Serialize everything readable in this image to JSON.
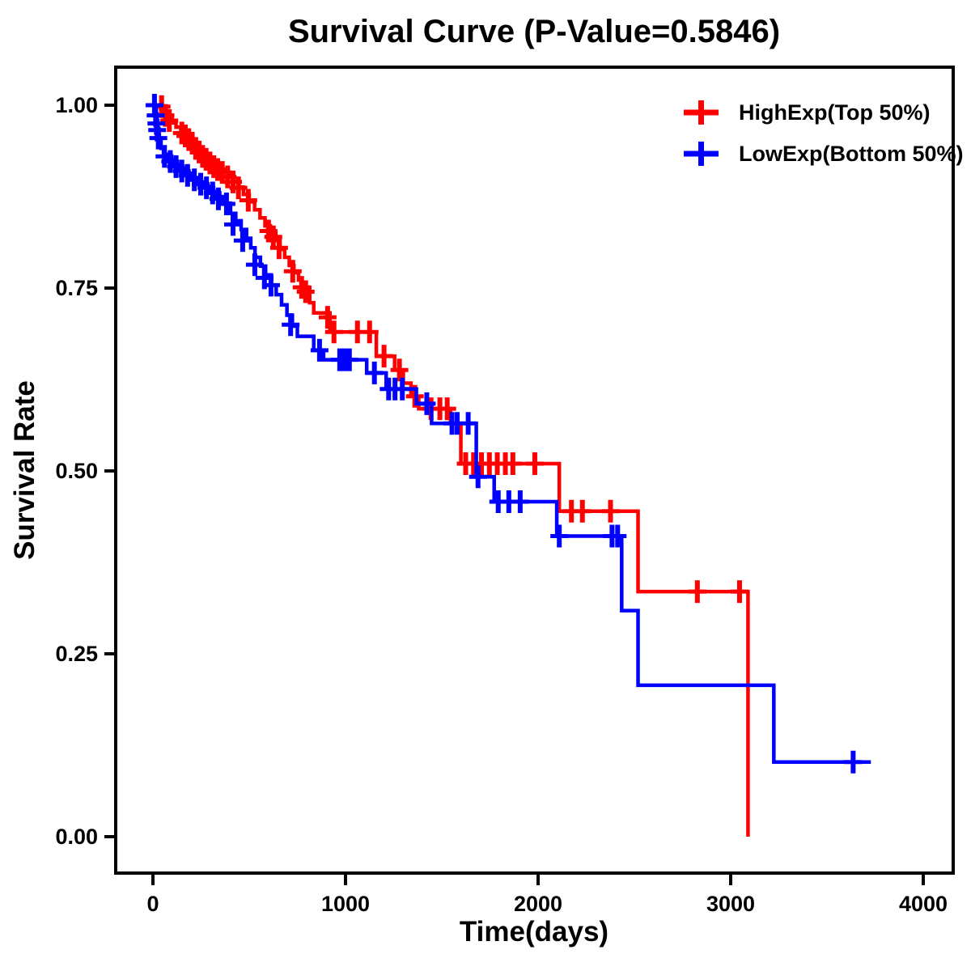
{
  "title": "Survival Curve (P-Value=0.5846)",
  "chart_data": {
    "type": "line",
    "subtype": "kaplan-meier-step",
    "title": "Survival Curve (P-Value=0.5846)",
    "p_value": "0.5846",
    "xlabel": "Time(days)",
    "ylabel": "Survival Rate",
    "xlim": [
      0,
      4000
    ],
    "ylim": [
      0.0,
      1.0
    ],
    "xticks": [
      0,
      1000,
      2000,
      3000,
      4000
    ],
    "xtick_labels": [
      "0",
      "1000",
      "2000",
      "3000",
      "4000"
    ],
    "yticks": [
      0.0,
      0.25,
      0.5,
      0.75,
      1.0
    ],
    "ytick_labels": [
      "0.00",
      "0.25",
      "0.50",
      "0.75",
      "1.00"
    ],
    "grid": false,
    "legend_position": "top-right-inside",
    "frame_color": "#000000",
    "background": "#ffffff",
    "series": [
      {
        "name": "HighExp(Top 50%)",
        "color": "#FF0000",
        "end_time": 3090,
        "steps": [
          [
            0,
            1.0
          ],
          [
            40,
            0.995
          ],
          [
            60,
            0.989
          ],
          [
            80,
            0.982
          ],
          [
            100,
            0.976
          ],
          [
            120,
            0.97
          ],
          [
            145,
            0.964
          ],
          [
            170,
            0.958
          ],
          [
            190,
            0.952
          ],
          [
            208,
            0.946
          ],
          [
            226,
            0.94
          ],
          [
            244,
            0.934
          ],
          [
            262,
            0.929
          ],
          [
            282,
            0.924
          ],
          [
            305,
            0.919
          ],
          [
            330,
            0.914
          ],
          [
            358,
            0.909
          ],
          [
            386,
            0.903
          ],
          [
            414,
            0.896
          ],
          [
            442,
            0.888
          ],
          [
            470,
            0.878
          ],
          [
            500,
            0.868
          ],
          [
            528,
            0.857
          ],
          [
            556,
            0.846
          ],
          [
            582,
            0.835
          ],
          [
            610,
            0.826
          ],
          [
            638,
            0.815
          ],
          [
            660,
            0.803
          ],
          [
            684,
            0.792
          ],
          [
            708,
            0.781
          ],
          [
            732,
            0.771
          ],
          [
            756,
            0.761
          ],
          [
            772,
            0.751
          ],
          [
            814,
            0.73
          ],
          [
            835,
            0.716
          ],
          [
            919,
            0.69
          ],
          [
            1160,
            0.657
          ],
          [
            1255,
            0.638
          ],
          [
            1300,
            0.62
          ],
          [
            1340,
            0.602
          ],
          [
            1380,
            0.585
          ],
          [
            1545,
            0.565
          ],
          [
            1599,
            0.51
          ],
          [
            2110,
            0.445
          ],
          [
            2519,
            0.335
          ],
          [
            3090,
            0.0
          ]
        ],
        "censors": [
          [
            45,
            0.998
          ],
          [
            65,
            0.986
          ],
          [
            85,
            0.979
          ],
          [
            150,
            0.962
          ],
          [
            168,
            0.958
          ],
          [
            186,
            0.953
          ],
          [
            204,
            0.948
          ],
          [
            222,
            0.941
          ],
          [
            240,
            0.936
          ],
          [
            258,
            0.93
          ],
          [
            276,
            0.926
          ],
          [
            296,
            0.921
          ],
          [
            316,
            0.916
          ],
          [
            336,
            0.912
          ],
          [
            360,
            0.908
          ],
          [
            388,
            0.902
          ],
          [
            416,
            0.895
          ],
          [
            444,
            0.887
          ],
          [
            495,
            0.87
          ],
          [
            600,
            0.828
          ],
          [
            625,
            0.82
          ],
          [
            655,
            0.805
          ],
          [
            726,
            0.773
          ],
          [
            772,
            0.751
          ],
          [
            793,
            0.745
          ],
          [
            907,
            0.71
          ],
          [
            940,
            0.69
          ],
          [
            1062,
            0.69
          ],
          [
            1125,
            0.69
          ],
          [
            1200,
            0.657
          ],
          [
            1280,
            0.638
          ],
          [
            1360,
            0.602
          ],
          [
            1444,
            0.585
          ],
          [
            1490,
            0.585
          ],
          [
            1528,
            0.585
          ],
          [
            1624,
            0.51
          ],
          [
            1665,
            0.51
          ],
          [
            1706,
            0.51
          ],
          [
            1747,
            0.51
          ],
          [
            1788,
            0.51
          ],
          [
            1830,
            0.51
          ],
          [
            1869,
            0.51
          ],
          [
            1983,
            0.51
          ],
          [
            2173,
            0.445
          ],
          [
            2230,
            0.445
          ],
          [
            2376,
            0.445
          ],
          [
            2827,
            0.335
          ],
          [
            3046,
            0.335
          ]
        ]
      },
      {
        "name": "LowExp(Bottom 50%)",
        "color": "#0000FF",
        "end_time": 3728,
        "steps": [
          [
            0,
            1.0
          ],
          [
            10,
            0.992
          ],
          [
            15,
            0.982
          ],
          [
            20,
            0.971
          ],
          [
            26,
            0.96
          ],
          [
            33,
            0.95
          ],
          [
            42,
            0.941
          ],
          [
            55,
            0.933
          ],
          [
            75,
            0.926
          ],
          [
            105,
            0.919
          ],
          [
            135,
            0.913
          ],
          [
            165,
            0.907
          ],
          [
            200,
            0.901
          ],
          [
            235,
            0.895
          ],
          [
            270,
            0.889
          ],
          [
            300,
            0.882
          ],
          [
            330,
            0.875
          ],
          [
            361,
            0.866
          ],
          [
            403,
            0.852
          ],
          [
            430,
            0.842
          ],
          [
            458,
            0.83
          ],
          [
            486,
            0.818
          ],
          [
            508,
            0.805
          ],
          [
            530,
            0.792
          ],
          [
            558,
            0.78
          ],
          [
            585,
            0.768
          ],
          [
            613,
            0.754
          ],
          [
            640,
            0.741
          ],
          [
            668,
            0.727
          ],
          [
            696,
            0.713
          ],
          [
            724,
            0.698
          ],
          [
            750,
            0.684
          ],
          [
            835,
            0.665
          ],
          [
            886,
            0.652
          ],
          [
            1110,
            0.634
          ],
          [
            1211,
            0.612
          ],
          [
            1368,
            0.592
          ],
          [
            1447,
            0.565
          ],
          [
            1679,
            0.492
          ],
          [
            1772,
            0.458
          ],
          [
            2097,
            0.411
          ],
          [
            2434,
            0.309
          ],
          [
            2519,
            0.207
          ],
          [
            3224,
            0.102
          ]
        ],
        "censors": [
          [
            8,
            1.0
          ],
          [
            14,
            0.986
          ],
          [
            18,
            0.975
          ],
          [
            22,
            0.966
          ],
          [
            28,
            0.955
          ],
          [
            60,
            0.93
          ],
          [
            90,
            0.923
          ],
          [
            120,
            0.916
          ],
          [
            150,
            0.91
          ],
          [
            180,
            0.904
          ],
          [
            215,
            0.898
          ],
          [
            248,
            0.892
          ],
          [
            278,
            0.887
          ],
          [
            310,
            0.88
          ],
          [
            340,
            0.872
          ],
          [
            382,
            0.865
          ],
          [
            416,
            0.837
          ],
          [
            466,
            0.815
          ],
          [
            529,
            0.782
          ],
          [
            579,
            0.764
          ],
          [
            613,
            0.754
          ],
          [
            715,
            0.7
          ],
          [
            865,
            0.665
          ],
          [
            970,
            0.652
          ],
          [
            995,
            0.652
          ],
          [
            1020,
            0.652
          ],
          [
            1150,
            0.634
          ],
          [
            1224,
            0.612
          ],
          [
            1257,
            0.612
          ],
          [
            1295,
            0.612
          ],
          [
            1422,
            0.592
          ],
          [
            1553,
            0.565
          ],
          [
            1580,
            0.565
          ],
          [
            1637,
            0.565
          ],
          [
            1688,
            0.492
          ],
          [
            1793,
            0.458
          ],
          [
            1848,
            0.458
          ],
          [
            1907,
            0.458
          ],
          [
            2110,
            0.411
          ],
          [
            2384,
            0.411
          ],
          [
            2413,
            0.411
          ],
          [
            3636,
            0.102
          ]
        ]
      }
    ]
  }
}
